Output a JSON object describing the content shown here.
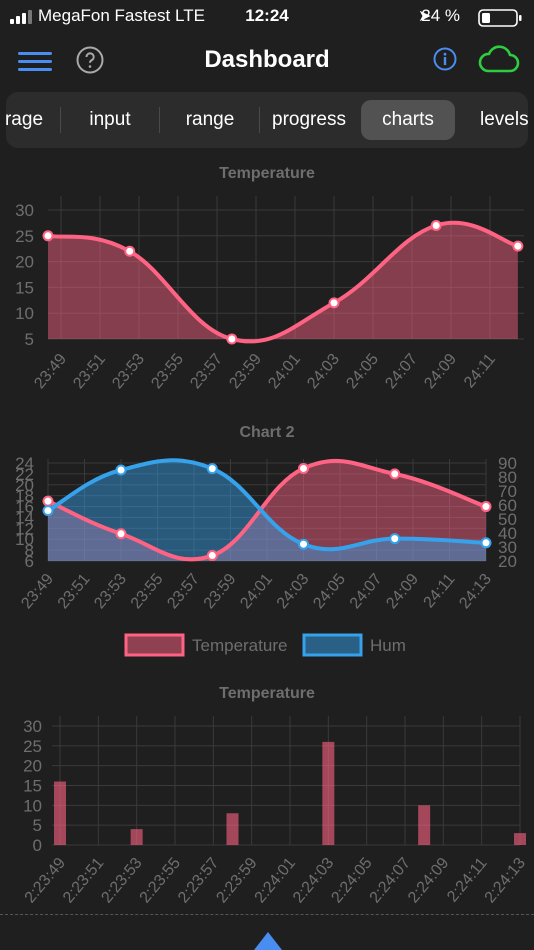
{
  "status": {
    "carrier": "MegaFon Fastest  LTE",
    "time": "12:24",
    "battery": "24 %"
  },
  "header": {
    "title": "Dashboard"
  },
  "tabs": [
    {
      "label": "rage",
      "active": false
    },
    {
      "label": "input",
      "active": false
    },
    {
      "label": "range",
      "active": false
    },
    {
      "label": "progress",
      "active": false
    },
    {
      "label": "charts",
      "active": true
    },
    {
      "label": "levels",
      "active": false
    }
  ],
  "colors": {
    "accent": "#4a8df0",
    "cloud": "#2ecc40",
    "temperature": "#ff6384",
    "humidity": "#36a2eb",
    "grid": "#3a3a3a",
    "text": "#6e6e6e"
  },
  "icons": [
    "hamburger-menu-icon",
    "help-icon",
    "info-icon",
    "cloud-icon",
    "up-arrow-icon"
  ],
  "chart_data": [
    {
      "type": "area",
      "title": "Temperature",
      "x": [
        "23:49",
        "23:53",
        "23:58",
        "24:03",
        "24:08",
        "24:12"
      ],
      "tick_labels": [
        "23:49",
        "23:51",
        "23:53",
        "23:55",
        "23:57",
        "23:59",
        "24:01",
        "24:03",
        "24:05",
        "24:07",
        "24:09",
        "24:11"
      ],
      "series": [
        {
          "values": [
            25,
            22,
            5,
            12,
            27,
            23
          ]
        }
      ],
      "y_ticks": [
        30,
        25,
        20,
        15,
        10,
        5
      ],
      "ylim": [
        5,
        30
      ],
      "grid": true
    },
    {
      "type": "area",
      "title": "Chart 2",
      "x": [
        "23:49",
        "23:53",
        "23:58",
        "24:03",
        "24:08",
        "24:13"
      ],
      "tick_labels": [
        "23:49",
        "23:51",
        "23:53",
        "23:55",
        "23:57",
        "23:59",
        "24:01",
        "24:03",
        "24:05",
        "24:07",
        "24:09",
        "24:11",
        "24:13"
      ],
      "series": [
        {
          "name": "Temperature",
          "values": [
            17,
            11,
            7,
            23,
            22,
            16
          ],
          "axis": "left"
        },
        {
          "name": "Hum",
          "values": [
            56,
            85,
            86,
            32,
            36,
            33
          ],
          "axis": "right"
        }
      ],
      "y_ticks_left": [
        24,
        22,
        20,
        18,
        16,
        14,
        12,
        10,
        8,
        6
      ],
      "y_ticks_right": [
        90,
        80,
        70,
        60,
        50,
        40,
        30,
        20
      ],
      "ylim_left": [
        6,
        24
      ],
      "ylim_right": [
        20,
        90
      ],
      "legend": "bottom",
      "grid": true
    },
    {
      "type": "bar",
      "title": "Temperature",
      "x": [
        "23:49",
        "23:53",
        "23:58",
        "24:03",
        "24:08",
        "24:13"
      ],
      "tick_labels": [
        "2:23:49",
        "2:23:51",
        "2:23:53",
        "2:23:55",
        "2:23:57",
        "2:23:59",
        "2:24:01",
        "2:24:03",
        "2:24:05",
        "2:24:07",
        "2:24:09",
        "2:24:11",
        "2:24:13"
      ],
      "series": [
        {
          "values": [
            16,
            4,
            8,
            26,
            10,
            3
          ]
        }
      ],
      "y_ticks": [
        30,
        25,
        20,
        15,
        10,
        5,
        0
      ],
      "ylim": [
        0,
        30
      ],
      "grid": true
    }
  ]
}
